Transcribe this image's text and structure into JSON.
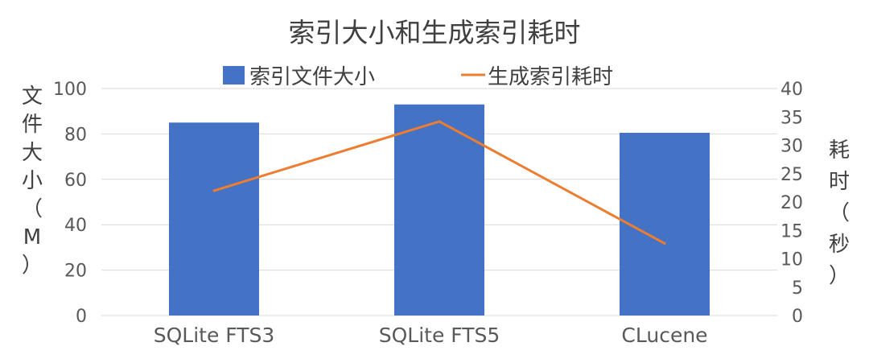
{
  "chart_data": {
    "type": "bar",
    "title": "索引大小和生成索引耗时",
    "categories": [
      "SQLite FTS3",
      "SQLite FTS5",
      "CLucene"
    ],
    "series": [
      {
        "name": "索引文件大小",
        "kind": "bar",
        "axis": "left",
        "color": "#4472C4",
        "values": [
          85,
          93,
          80.5
        ]
      },
      {
        "name": "生成索引耗时",
        "kind": "line",
        "axis": "right",
        "color": "#ED7D31",
        "values": [
          22,
          34.2,
          12.7
        ]
      }
    ],
    "ylabel": "文件大小（M）",
    "y2label": "耗时（秒）",
    "ylim": [
      0,
      100
    ],
    "y2lim": [
      0,
      40
    ],
    "yticks": [
      "0",
      "20",
      "40",
      "60",
      "80",
      "100"
    ],
    "y2ticks": [
      "0",
      "5",
      "10",
      "15",
      "20",
      "25",
      "30",
      "35",
      "40"
    ],
    "grid": true,
    "gridline_color": "#D9D9D9",
    "legend_position": "top"
  }
}
